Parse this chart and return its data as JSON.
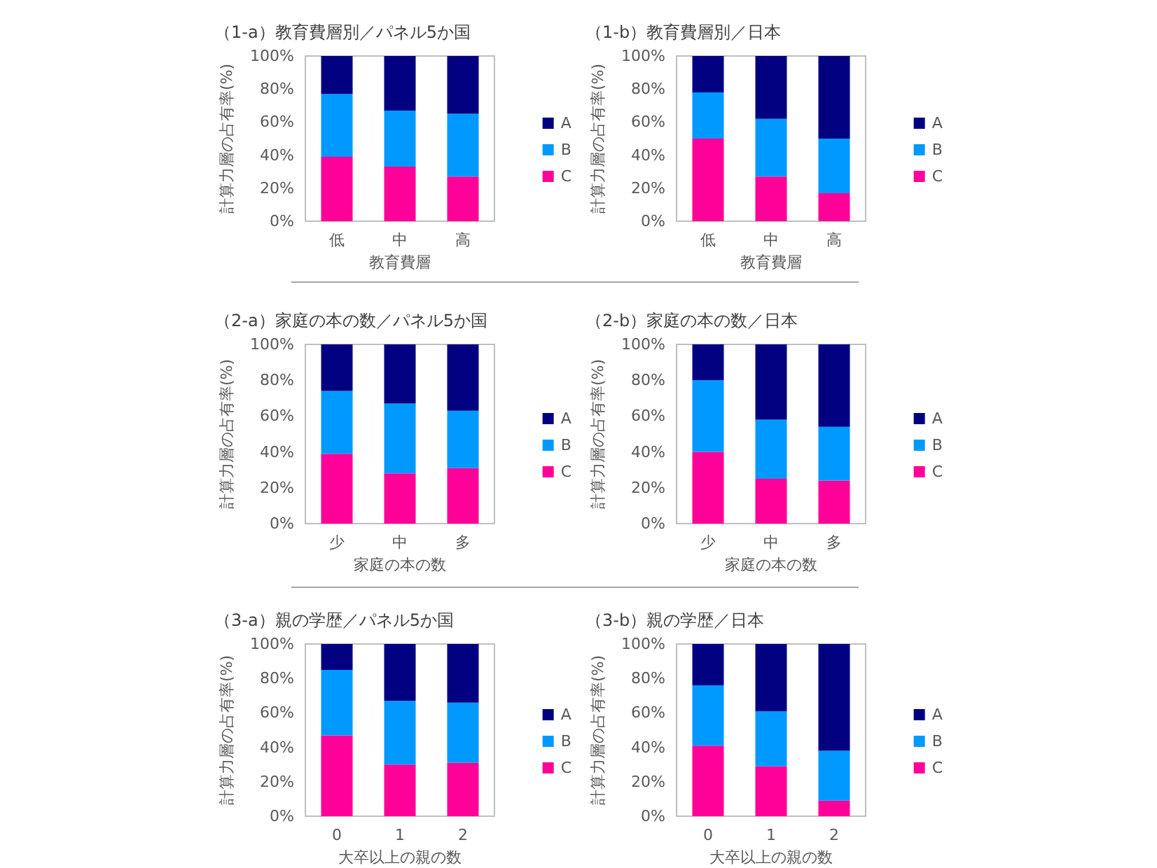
{
  "chart_data": [
    {
      "type": "bar",
      "title": "（1-a）教育費層別／パネル5か国",
      "xlabel": "教育費層",
      "ylabel": "計算力層の占有率(%)",
      "categories": [
        "低",
        "中",
        "高"
      ],
      "stacked": true,
      "legend": "right",
      "grid": false,
      "ylim": [
        0,
        100
      ],
      "yticks": [
        {
          "value": 0,
          "label": "0%"
        },
        {
          "value": 20,
          "label": "20%"
        },
        {
          "value": 40,
          "label": "40%"
        },
        {
          "value": 60,
          "label": "60%"
        },
        {
          "value": 80,
          "label": "80%"
        },
        {
          "value": 100,
          "label": "100%"
        }
      ],
      "series": [
        {
          "name": "C",
          "color": "#ff0099",
          "values": [
            39,
            33,
            27
          ]
        },
        {
          "name": "B",
          "color": "#0099ff",
          "values": [
            38,
            34,
            38
          ]
        },
        {
          "name": "A",
          "color": "#000080",
          "values": [
            23,
            33,
            35
          ]
        }
      ]
    },
    {
      "type": "bar",
      "title": "（1-b）教育費層別／日本",
      "xlabel": "教育費層",
      "ylabel": "計算力層の占有率(%)",
      "categories": [
        "低",
        "中",
        "高"
      ],
      "stacked": true,
      "legend": "right",
      "grid": false,
      "ylim": [
        0,
        100
      ],
      "yticks": [
        {
          "value": 0,
          "label": "0%"
        },
        {
          "value": 20,
          "label": "20%"
        },
        {
          "value": 40,
          "label": "40%"
        },
        {
          "value": 60,
          "label": "60%"
        },
        {
          "value": 80,
          "label": "80%"
        },
        {
          "value": 100,
          "label": "100%"
        }
      ],
      "series": [
        {
          "name": "C",
          "color": "#ff0099",
          "values": [
            50,
            27,
            17
          ]
        },
        {
          "name": "B",
          "color": "#0099ff",
          "values": [
            28,
            35,
            33
          ]
        },
        {
          "name": "A",
          "color": "#000080",
          "values": [
            22,
            38,
            50
          ]
        }
      ]
    },
    {
      "type": "bar",
      "title": "（2-a）家庭の本の数／パネル5か国",
      "xlabel": "家庭の本の数",
      "ylabel": "計算力層の占有率(%)",
      "categories": [
        "少",
        "中",
        "多"
      ],
      "stacked": true,
      "legend": "right",
      "grid": false,
      "ylim": [
        0,
        100
      ],
      "yticks": [
        {
          "value": 0,
          "label": "0%"
        },
        {
          "value": 20,
          "label": "20%"
        },
        {
          "value": 40,
          "label": "40%"
        },
        {
          "value": 60,
          "label": "60%"
        },
        {
          "value": 80,
          "label": "80%"
        },
        {
          "value": 100,
          "label": "100%"
        }
      ],
      "series": [
        {
          "name": "C",
          "color": "#ff0099",
          "values": [
            39,
            28,
            31
          ]
        },
        {
          "name": "B",
          "color": "#0099ff",
          "values": [
            35,
            39,
            32
          ]
        },
        {
          "name": "A",
          "color": "#000080",
          "values": [
            26,
            33,
            37
          ]
        }
      ]
    },
    {
      "type": "bar",
      "title": "（2-b）家庭の本の数／日本",
      "xlabel": "家庭の本の数",
      "ylabel": "計算力層の占有率(%)",
      "categories": [
        "少",
        "中",
        "多"
      ],
      "stacked": true,
      "legend": "right",
      "grid": false,
      "ylim": [
        0,
        100
      ],
      "yticks": [
        {
          "value": 0,
          "label": "0%"
        },
        {
          "value": 20,
          "label": "20%"
        },
        {
          "value": 40,
          "label": "40%"
        },
        {
          "value": 60,
          "label": "60%"
        },
        {
          "value": 80,
          "label": "80%"
        },
        {
          "value": 100,
          "label": "100%"
        }
      ],
      "series": [
        {
          "name": "C",
          "color": "#ff0099",
          "values": [
            40,
            25,
            24
          ]
        },
        {
          "name": "B",
          "color": "#0099ff",
          "values": [
            40,
            33,
            30
          ]
        },
        {
          "name": "A",
          "color": "#000080",
          "values": [
            20,
            42,
            46
          ]
        }
      ]
    },
    {
      "type": "bar",
      "title": "（3-a）親の学歴／パネル5か国",
      "xlabel": "大卒以上の親の数",
      "ylabel": "計算力層の占有率(%)",
      "categories": [
        "0",
        "1",
        "2"
      ],
      "stacked": true,
      "legend": "right",
      "grid": false,
      "ylim": [
        0,
        100
      ],
      "yticks": [
        {
          "value": 0,
          "label": "0%"
        },
        {
          "value": 20,
          "label": "20%"
        },
        {
          "value": 40,
          "label": "40%"
        },
        {
          "value": 60,
          "label": "60%"
        },
        {
          "value": 80,
          "label": "80%"
        },
        {
          "value": 100,
          "label": "100%"
        }
      ],
      "series": [
        {
          "name": "C",
          "color": "#ff0099",
          "values": [
            47,
            30,
            31
          ]
        },
        {
          "name": "B",
          "color": "#0099ff",
          "values": [
            38,
            37,
            35
          ]
        },
        {
          "name": "A",
          "color": "#000080",
          "values": [
            15,
            33,
            34
          ]
        }
      ]
    },
    {
      "type": "bar",
      "title": "（3-b）親の学歴／日本",
      "xlabel": "大卒以上の親の数",
      "ylabel": "計算力層の占有率(%)",
      "categories": [
        "0",
        "1",
        "2"
      ],
      "stacked": true,
      "legend": "right",
      "grid": false,
      "ylim": [
        0,
        100
      ],
      "yticks": [
        {
          "value": 0,
          "label": "0%"
        },
        {
          "value": 20,
          "label": "20%"
        },
        {
          "value": 40,
          "label": "40%"
        },
        {
          "value": 60,
          "label": "60%"
        },
        {
          "value": 80,
          "label": "80%"
        },
        {
          "value": 100,
          "label": "100%"
        }
      ],
      "series": [
        {
          "name": "C",
          "color": "#ff0099",
          "values": [
            41,
            29,
            9
          ]
        },
        {
          "name": "B",
          "color": "#0099ff",
          "values": [
            35,
            32,
            29
          ]
        },
        {
          "name": "A",
          "color": "#000080",
          "values": [
            24,
            39,
            62
          ]
        }
      ]
    }
  ]
}
